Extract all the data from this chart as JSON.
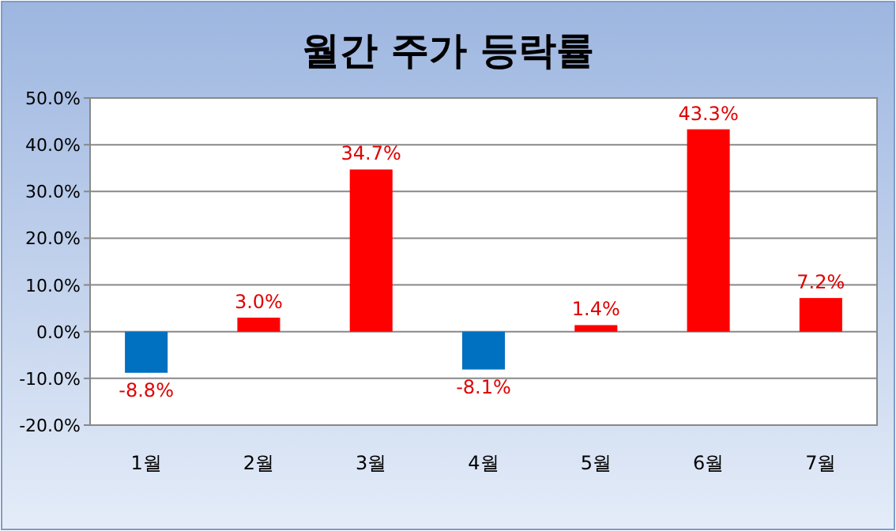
{
  "chart_data": {
    "type": "bar",
    "title": "월간 주가 등락률",
    "categories": [
      "1월",
      "2월",
      "3월",
      "4월",
      "5월",
      "6월",
      "7월"
    ],
    "values": [
      -8.8,
      3.0,
      34.7,
      -8.1,
      1.4,
      43.3,
      7.2
    ],
    "colors": [
      "#0070c0",
      "#ff0000",
      "#ff0000",
      "#0070c0",
      "#ff0000",
      "#ff0000",
      "#ff0000"
    ],
    "value_labels": [
      "-8.8%",
      "3.0%",
      "34.7%",
      "-8.1%",
      "1.4%",
      "43.3%",
      "7.2%"
    ],
    "ylim": [
      -20,
      50
    ],
    "yticks": [
      {
        "value": -20,
        "label": "-20.0%"
      },
      {
        "value": -10,
        "label": "-10.0%"
      },
      {
        "value": 0,
        "label": "0.0%"
      },
      {
        "value": 10,
        "label": "10.0%"
      },
      {
        "value": 20,
        "label": "20.0%"
      },
      {
        "value": 30,
        "label": "30.0%"
      },
      {
        "value": 40,
        "label": "40.0%"
      },
      {
        "value": 50,
        "label": "50.0%"
      }
    ],
    "grid": "y"
  }
}
